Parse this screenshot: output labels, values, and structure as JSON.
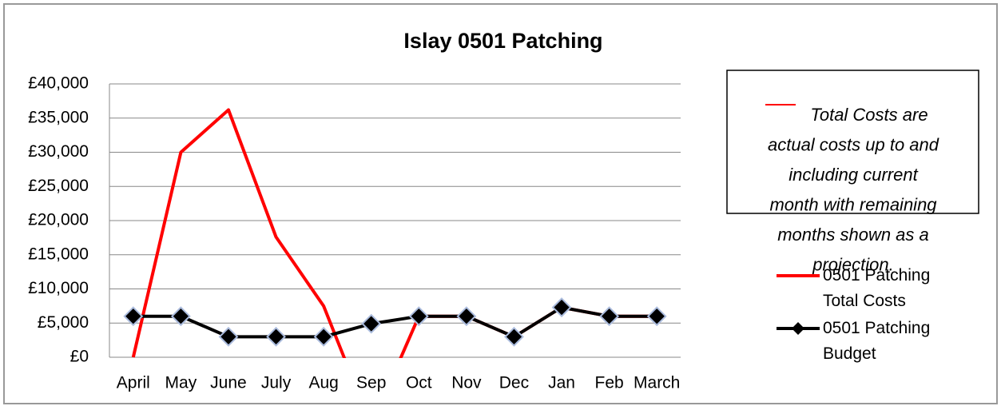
{
  "chart_data": {
    "type": "line",
    "title": "Islay 0501 Patching",
    "categories": [
      "April",
      "May",
      "June",
      "July",
      "Aug",
      "Sep",
      "Oct",
      "Nov",
      "Dec",
      "Jan",
      "Feb",
      "March"
    ],
    "series": [
      {
        "name": "0501 Patching Total Costs",
        "color": "#ff0000",
        "values": [
          0,
          30000,
          36200,
          17600,
          7500,
          -10000,
          6000,
          6000,
          3000,
          7300,
          6000,
          6000
        ]
      },
      {
        "name": "0501 Patching Budget",
        "color": "#000000",
        "marker": "diamond",
        "values": [
          6000,
          6000,
          3000,
          3000,
          3000,
          4900,
          6000,
          6000,
          3000,
          7300,
          6000,
          6000
        ]
      }
    ],
    "ylim": [
      0,
      40000
    ],
    "yticks": [
      {
        "value": 0,
        "label": "£0"
      },
      {
        "value": 5000,
        "label": "£5,000"
      },
      {
        "value": 10000,
        "label": "£10,000"
      },
      {
        "value": 15000,
        "label": "£15,000"
      },
      {
        "value": 20000,
        "label": "£20,000"
      },
      {
        "value": 25000,
        "label": "£25,000"
      },
      {
        "value": 30000,
        "label": "£30,000"
      },
      {
        "value": 35000,
        "label": "£35,000"
      },
      {
        "value": 40000,
        "label": "£40,000"
      }
    ],
    "grid": true,
    "annotation": [
      "Total Costs are",
      "actual costs up to and",
      "including current",
      "month with remaining",
      "months shown as a",
      "projection."
    ],
    "legend": "right"
  }
}
